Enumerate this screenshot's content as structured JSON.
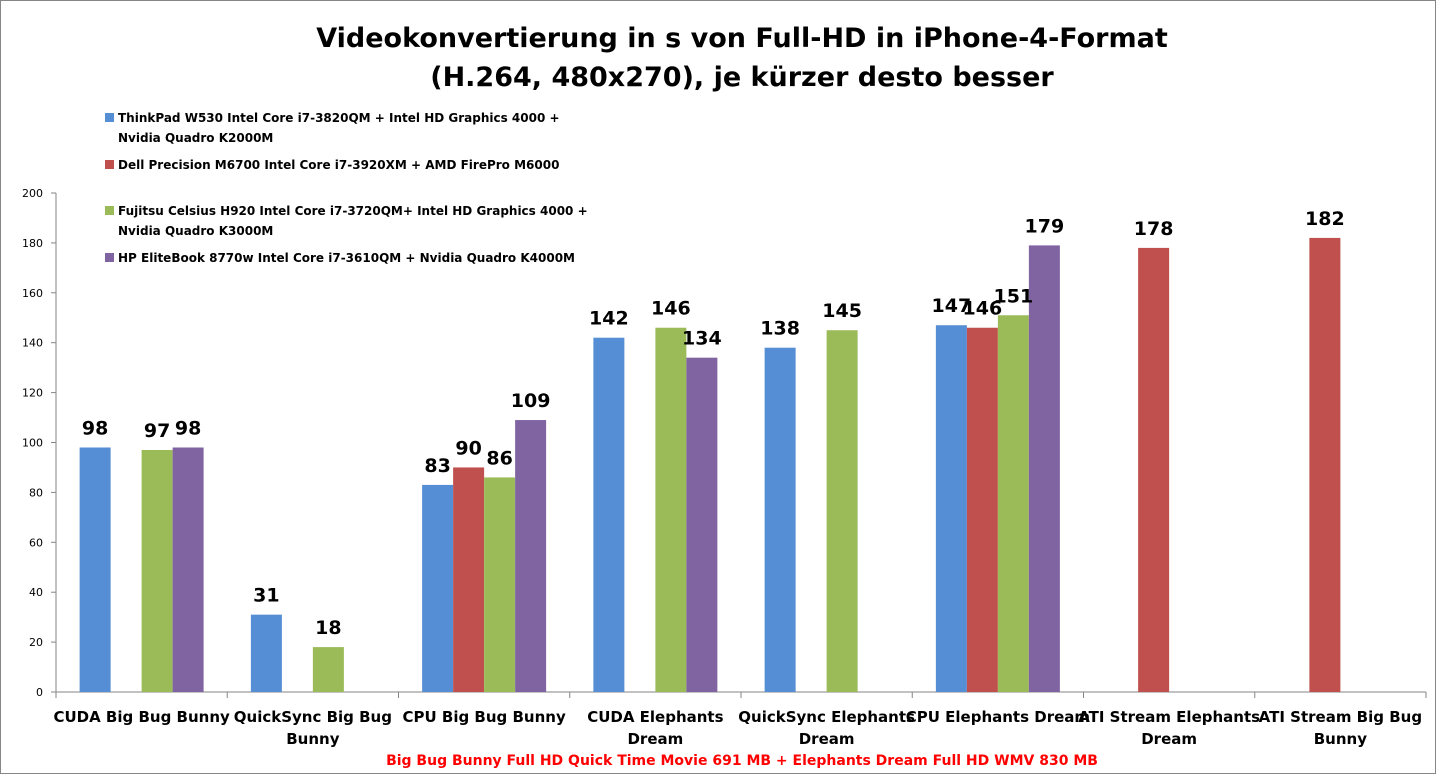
{
  "chart_data": {
    "type": "bar",
    "title": "Videokonvertierung in s von Full-HD in iPhone-4-Format",
    "subtitle": "(H.264, 480x270), je kürzer desto besser",
    "xlabel": "Big Bug Bunny Full HD Quick Time Movie 691 MB + Elephants Dream Full HD WMV 830 MB",
    "ylabel": "",
    "ylim": [
      0,
      200
    ],
    "yticks": [
      "0",
      "20",
      "40",
      "60",
      "80",
      "100",
      "120",
      "140",
      "160",
      "180",
      "200"
    ],
    "grid": false,
    "legend_position": "top-left",
    "categories": [
      [
        "CUDA Big Bug Bunny"
      ],
      [
        "QuickSync Big Bug",
        "Bunny"
      ],
      [
        "CPU Big Bug Bunny"
      ],
      [
        "CUDA Elephants",
        "Dream"
      ],
      [
        "QuickSync Elephants",
        "Dream"
      ],
      [
        "CPU Elephants Dream"
      ],
      [
        "ATI Stream Elephants",
        "Dream"
      ],
      [
        "ATI Stream Big Bug",
        "Bunny"
      ]
    ],
    "series": [
      {
        "name": [
          "ThinkPad W530 Intel Core i7-3820QM + Intel HD Graphics 4000 +",
          "Nvidia Quadro K2000M"
        ],
        "color": "#558ED5",
        "values": [
          98,
          31,
          83,
          142,
          138,
          147,
          null,
          null
        ]
      },
      {
        "name": [
          "Dell Precision M6700 Intel Core i7-3920XM + AMD FirePro M6000"
        ],
        "color": "#C0504D",
        "values": [
          null,
          null,
          90,
          null,
          null,
          146,
          178,
          182
        ]
      },
      {
        "name": [
          "Fujitsu Celsius H920 Intel Core i7-3720QM+ Intel HD Graphics 4000 +",
          "Nvidia Quadro K3000M"
        ],
        "color": "#9BBB59",
        "values": [
          97,
          18,
          86,
          146,
          145,
          151,
          null,
          null
        ]
      },
      {
        "name": [
          "HP EliteBook 8770w Intel Core i7-3610QM + Nvidia Quadro K4000M"
        ],
        "color": "#8064A2",
        "values": [
          98,
          null,
          109,
          134,
          null,
          179,
          null,
          null
        ]
      }
    ]
  }
}
